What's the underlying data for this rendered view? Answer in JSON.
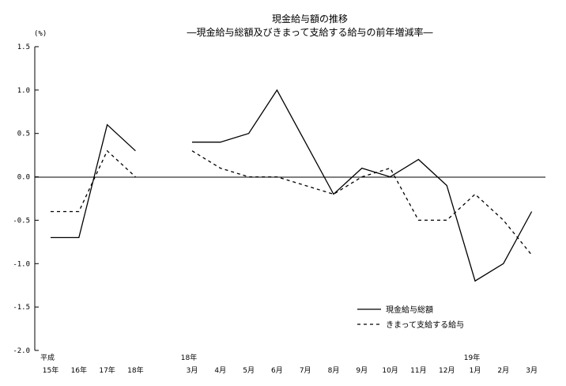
{
  "chart_data": {
    "type": "line",
    "title": "現金給与額の推移",
    "subtitle": "―現金給与総額及びきまって支給する給与の前年増減率―",
    "yunit": "(%)",
    "ylim": [
      -2.0,
      1.5
    ],
    "yticks": [
      "1.5",
      "1.0",
      "0.5",
      "0.0",
      "-0.5",
      "-1.0",
      "-1.5",
      "-2.0"
    ],
    "grid": false,
    "legend_position": "bottom-right",
    "categories": [
      {
        "top": "平成",
        "bottom": "15年"
      },
      {
        "top": "",
        "bottom": "16年"
      },
      {
        "top": "",
        "bottom": "17年"
      },
      {
        "top": "",
        "bottom": "18年"
      },
      {
        "top": "",
        "bottom": ""
      },
      {
        "top": "18年",
        "bottom": "3月"
      },
      {
        "top": "",
        "bottom": "4月"
      },
      {
        "top": "",
        "bottom": "5月"
      },
      {
        "top": "",
        "bottom": "6月"
      },
      {
        "top": "",
        "bottom": "7月"
      },
      {
        "top": "",
        "bottom": "8月"
      },
      {
        "top": "",
        "bottom": "9月"
      },
      {
        "top": "",
        "bottom": "10月"
      },
      {
        "top": "",
        "bottom": "11月"
      },
      {
        "top": "",
        "bottom": "12月"
      },
      {
        "top": "19年",
        "bottom": "1月"
      },
      {
        "top": "",
        "bottom": "2月"
      },
      {
        "top": "",
        "bottom": "3月"
      }
    ],
    "series": [
      {
        "name": "現金給与総額",
        "style": "solid",
        "color": "#000000",
        "values": [
          -0.7,
          -0.7,
          0.6,
          0.3,
          null,
          0.4,
          0.4,
          0.5,
          1.0,
          0.4,
          -0.2,
          0.1,
          0.0,
          0.2,
          -0.1,
          -1.2,
          -1.0,
          -0.4
        ]
      },
      {
        "name": "きまって支給する給与",
        "style": "dashed",
        "color": "#000000",
        "values": [
          -0.4,
          -0.4,
          0.3,
          0.0,
          null,
          0.3,
          0.1,
          0.0,
          0.0,
          -0.1,
          -0.2,
          0.0,
          0.1,
          -0.5,
          -0.5,
          -0.2,
          -0.5,
          -0.9
        ]
      }
    ]
  }
}
